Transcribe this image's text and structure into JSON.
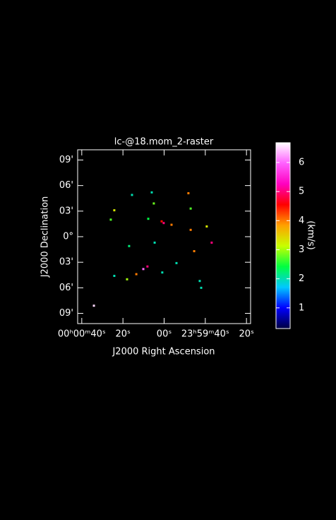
{
  "chart_data": {
    "type": "raster",
    "title": "lc-@18.mom_2-raster",
    "xlabel": "J2000 Right Ascension",
    "ylabel": "J2000 Declination",
    "colorbar_label": "(km/s)",
    "x": [
      34.1,
      24.2,
      25.9,
      15.6,
      6.0,
      5.0,
      7.7,
      1.2,
      0.2,
      -3.6,
      -12.9,
      -11.8,
      -20.7,
      -12.9,
      17,
      4.6,
      -14.6,
      10.1,
      8.1,
      24.2,
      18,
      13.5,
      0.9,
      -6,
      -17.3,
      -18,
      -23.1
    ],
    "y": [
      -8.1,
      3.1,
      2.0,
      4.9,
      5.2,
      3.9,
      2.1,
      1.8,
      1.6,
      1.4,
      3.3,
      5.1,
      1.2,
      0.8,
      -1.1,
      -0.7,
      -1.7,
      -3.8,
      -3.5,
      -4.6,
      -5,
      -4.4,
      -4.2,
      -3.1,
      -5.2,
      -6,
      -0.7
    ],
    "values": [
      6.5,
      3.3,
      2.7,
      2,
      2,
      2.8,
      2.4,
      4.5,
      5,
      4,
      2.7,
      4,
      3.3,
      4,
      2.2,
      2,
      4,
      6,
      5,
      2,
      3,
      4,
      2,
      2,
      2,
      2,
      5
    ],
    "xlim": [
      42,
      -42
    ],
    "xticks": [
      {
        "value": 40,
        "label": "00ʰ00ᵐ40ˢ"
      },
      {
        "value": 20,
        "label": "20ˢ"
      },
      {
        "value": 0,
        "label": "00ˢ"
      },
      {
        "value": -20,
        "label": "23ʰ59ᵐ40ˢ"
      },
      {
        "value": -40,
        "label": "20ˢ"
      }
    ],
    "ylim": [
      -10.2,
      10.2
    ],
    "yticks": [
      {
        "value": 9,
        "label": "09'"
      },
      {
        "value": 6,
        "label": "06'"
      },
      {
        "value": 3,
        "label": "03'"
      },
      {
        "value": 0,
        "label": "0°"
      },
      {
        "value": -3,
        "label": "03'"
      },
      {
        "value": -6,
        "label": "06'"
      },
      {
        "value": -9,
        "label": "09'"
      }
    ],
    "clim": [
      0.29,
      6.68
    ],
    "cticks": [
      1,
      2,
      3,
      4,
      5,
      6
    ],
    "colormap": [
      "#000040",
      "#0000ff",
      "#00c8ff",
      "#00ff40",
      "#c8ff00",
      "#ffa000",
      "#ff0000",
      "#ff00c0",
      "#ff60ff",
      "#ffffff"
    ]
  }
}
